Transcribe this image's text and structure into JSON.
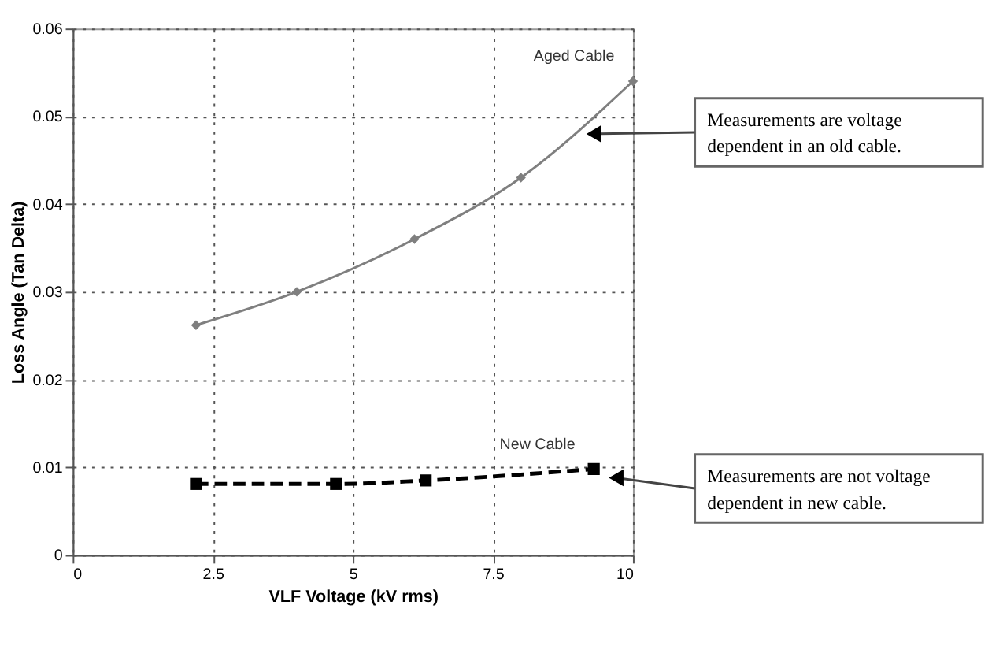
{
  "chart_data": {
    "type": "line",
    "xlabel": "VLF Voltage (kV rms)",
    "ylabel": "Loss Angle (Tan Delta)",
    "xlim": [
      0,
      10
    ],
    "xticks": [
      0,
      2.5,
      5,
      7.5,
      10
    ],
    "ylim": [
      0,
      0.06
    ],
    "yticks": [
      0,
      0.01,
      0.02,
      0.03,
      0.04,
      0.05,
      0.06
    ],
    "grid": true,
    "series": [
      {
        "name": "Aged Cable",
        "color": "#7f7f7f",
        "marker": "diamond",
        "line_style": "solid",
        "x": [
          2.2,
          4.0,
          6.1,
          8.0,
          10.0
        ],
        "values": [
          0.0262,
          0.03,
          0.036,
          0.043,
          0.054
        ]
      },
      {
        "name": "New Cable",
        "color": "#000000",
        "marker": "square",
        "line_style": "dashed",
        "x": [
          2.2,
          4.7,
          6.3,
          9.3
        ],
        "values": [
          0.0081,
          0.0081,
          0.0085,
          0.0098
        ]
      }
    ],
    "annotations": [
      {
        "text": "Measurements are voltage dependent in an old cable.",
        "x": 9.3,
        "y": 0.048
      },
      {
        "text": "Measurements are not voltage dependent in new cable.",
        "x": 9.7,
        "y": 0.0088
      }
    ]
  }
}
